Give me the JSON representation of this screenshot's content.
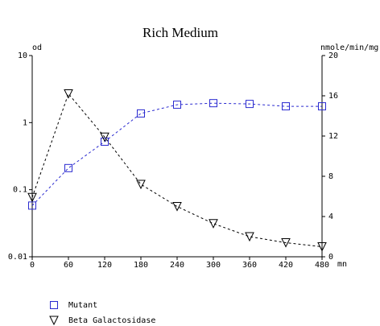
{
  "chart_data": {
    "type": "line",
    "title": "Rich Medium",
    "ylabel": "od",
    "y2label": "nmole/min/mg",
    "xlabel": "mn",
    "x": [
      0,
      60,
      120,
      180,
      240,
      300,
      360,
      420,
      480
    ],
    "xlim": [
      0,
      480
    ],
    "xticks": [
      0,
      60,
      120,
      180,
      240,
      300,
      360,
      420,
      480
    ],
    "ylim": [
      0.01,
      10
    ],
    "yticks": [
      0.01,
      0.1,
      1,
      10
    ],
    "ylog": true,
    "y2lim": [
      0,
      20
    ],
    "y2ticks": [
      0,
      4,
      8,
      12,
      16,
      20
    ],
    "series": [
      {
        "name": "Mutant",
        "color": "#2a2ad0",
        "marker": "square",
        "values": [
          0.058,
          0.21,
          0.52,
          1.37,
          1.85,
          1.95,
          1.9,
          1.75,
          1.75
        ]
      },
      {
        "name": "Beta Galactosidase",
        "color": "#000000",
        "marker": "triangle-down",
        "axis": "y2",
        "values": [
          5.9,
          16.2,
          11.9,
          7.2,
          5.0,
          3.3,
          2.0,
          1.4,
          1.0
        ]
      }
    ]
  }
}
